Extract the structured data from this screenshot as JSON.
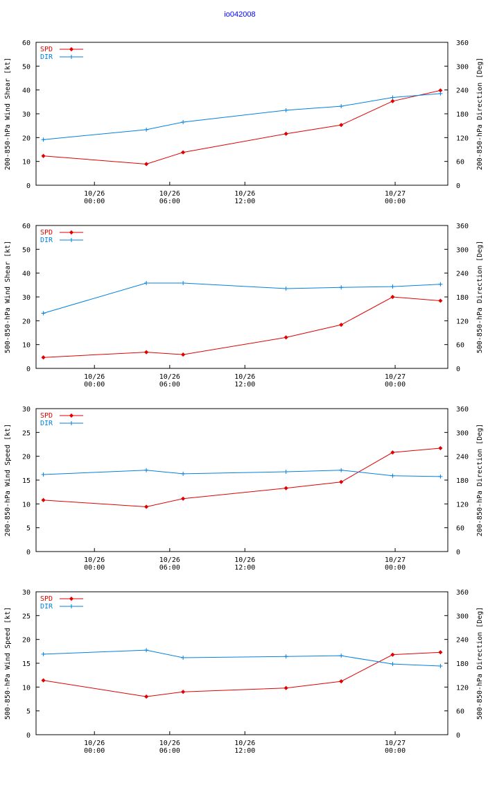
{
  "title": "io042008",
  "colors": {
    "spd": "#e00000",
    "dir": "#0080e0",
    "title": "#0000ff"
  },
  "chart_data": [
    {
      "type": "line",
      "ylabel_left": "200-850-hPa Wind Shear [kt]",
      "ylabel_right": "200-850-hPa Direction [Deg]",
      "ylim_left": [
        0,
        60
      ],
      "yticks_left": [
        "0",
        "10",
        "20",
        "30",
        "40",
        "50",
        "60"
      ],
      "ylim_right": [
        0,
        360
      ],
      "yticks_right": [
        "0",
        "60",
        "120",
        "180",
        "240",
        "300",
        "360"
      ],
      "x_hours": [
        -3.5,
        3.5,
        6,
        13,
        16.75,
        20.25,
        23.5
      ],
      "x_range": [
        -4,
        24
      ],
      "xtick_hours": [
        -0.03,
        5.09,
        10.2,
        20.42
      ],
      "xticks": [
        {
          "date": "10/26",
          "time": "00:00"
        },
        {
          "date": "10/26",
          "time": "06:00"
        },
        {
          "date": "10/26",
          "time": "12:00"
        },
        {
          "date": "10/27",
          "time": "00:00"
        }
      ],
      "series": [
        {
          "name": "SPD",
          "axis": "left",
          "values": [
            12.3,
            8.9,
            13.8,
            21.6,
            25.3,
            35.3,
            39.8
          ]
        },
        {
          "name": "DIR",
          "axis": "right",
          "values": [
            115,
            140,
            159,
            189,
            199,
            221,
            231
          ]
        }
      ]
    },
    {
      "type": "line",
      "ylabel_left": "500-850-hPa Wind Shear [kt]",
      "ylabel_right": "500-850-hPa Direction [Deg]",
      "ylim_left": [
        0,
        60
      ],
      "yticks_left": [
        "0",
        "10",
        "20",
        "30",
        "40",
        "50",
        "60"
      ],
      "ylim_right": [
        0,
        360
      ],
      "yticks_right": [
        "0",
        "60",
        "120",
        "180",
        "240",
        "300",
        "360"
      ],
      "x_hours": [
        -3.5,
        3.5,
        6,
        13,
        16.75,
        20.25,
        23.5
      ],
      "x_range": [
        -4,
        24
      ],
      "xtick_hours": [
        -0.03,
        5.09,
        10.2,
        20.42
      ],
      "xticks": [
        {
          "date": "10/26",
          "time": "00:00"
        },
        {
          "date": "10/26",
          "time": "06:00"
        },
        {
          "date": "10/26",
          "time": "12:00"
        },
        {
          "date": "10/27",
          "time": "00:00"
        }
      ],
      "series": [
        {
          "name": "SPD",
          "axis": "left",
          "values": [
            4.6,
            6.8,
            5.8,
            13.0,
            18.3,
            30.0,
            28.4
          ]
        },
        {
          "name": "DIR",
          "axis": "right",
          "values": [
            139,
            215,
            215,
            201,
            204,
            206,
            212
          ]
        }
      ]
    },
    {
      "type": "line",
      "ylabel_left": "200-850-hPa Wind Speed [kt]",
      "ylabel_right": "200-850-hPa Direction [Deg]",
      "ylim_left": [
        0,
        30
      ],
      "yticks_left": [
        "0",
        "5",
        "10",
        "15",
        "20",
        "25",
        "30"
      ],
      "ylim_right": [
        0,
        360
      ],
      "yticks_right": [
        "0",
        "60",
        "120",
        "180",
        "240",
        "300",
        "360"
      ],
      "x_hours": [
        -3.5,
        3.5,
        6,
        13,
        16.75,
        20.25,
        23.5
      ],
      "x_range": [
        -4,
        24
      ],
      "xtick_hours": [
        -0.03,
        5.09,
        10.2,
        20.42
      ],
      "xticks": [
        {
          "date": "10/26",
          "time": "00:00"
        },
        {
          "date": "10/26",
          "time": "06:00"
        },
        {
          "date": "10/26",
          "time": "12:00"
        },
        {
          "date": "10/27",
          "time": "00:00"
        }
      ],
      "series": [
        {
          "name": "SPD",
          "axis": "left",
          "values": [
            10.8,
            9.4,
            11.1,
            13.3,
            14.6,
            20.8,
            21.7
          ]
        },
        {
          "name": "DIR",
          "axis": "right",
          "values": [
            194,
            205,
            196,
            201,
            205,
            191,
            189
          ]
        }
      ]
    },
    {
      "type": "line",
      "ylabel_left": "500-850-hPa Wind Speed [kt]",
      "ylabel_right": "500-850-hPa Direction [Deg]",
      "ylim_left": [
        0,
        30
      ],
      "yticks_left": [
        "0",
        "5",
        "10",
        "15",
        "20",
        "25",
        "30"
      ],
      "ylim_right": [
        0,
        360
      ],
      "yticks_right": [
        "0",
        "60",
        "120",
        "180",
        "240",
        "300",
        "360"
      ],
      "x_hours": [
        -3.5,
        3.5,
        6,
        13,
        16.75,
        20.25,
        23.5
      ],
      "x_range": [
        -4,
        24
      ],
      "xtick_hours": [
        -0.03,
        5.09,
        10.2,
        20.42
      ],
      "xticks": [
        {
          "date": "10/26",
          "time": "00:00"
        },
        {
          "date": "10/26",
          "time": "06:00"
        },
        {
          "date": "10/26",
          "time": "12:00"
        },
        {
          "date": "10/27",
          "time": "00:00"
        }
      ],
      "series": [
        {
          "name": "SPD",
          "axis": "left",
          "values": [
            11.4,
            8.0,
            9.0,
            9.8,
            11.2,
            16.8,
            17.3
          ]
        },
        {
          "name": "DIR",
          "axis": "right",
          "values": [
            203,
            213,
            194,
            197,
            199,
            178,
            173
          ]
        }
      ]
    }
  ]
}
